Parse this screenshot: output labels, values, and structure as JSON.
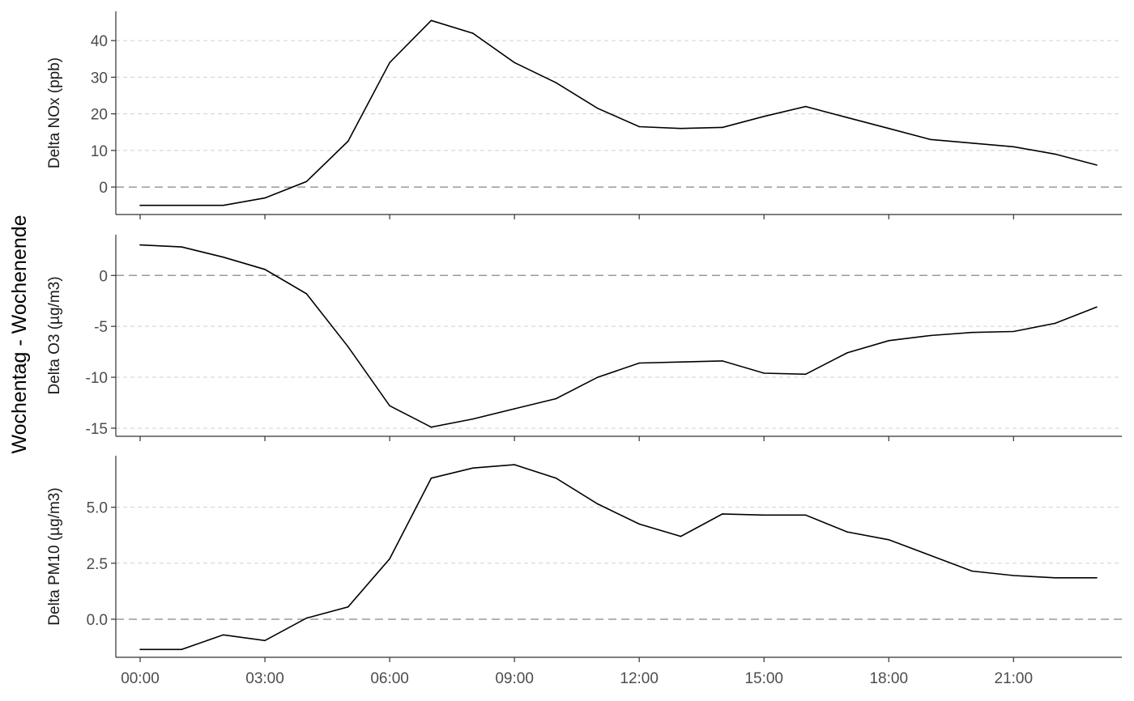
{
  "chart_data": {
    "type": "line",
    "ylabel": "Wochentag - Wochenende",
    "x": [
      "00:00",
      "01:00",
      "02:00",
      "03:00",
      "04:00",
      "05:00",
      "06:00",
      "07:00",
      "08:00",
      "09:00",
      "10:00",
      "11:00",
      "12:00",
      "13:00",
      "14:00",
      "15:00",
      "16:00",
      "17:00",
      "18:00",
      "19:00",
      "20:00",
      "21:00",
      "22:00",
      "23:00"
    ],
    "x_ticks": [
      "00:00",
      "03:00",
      "06:00",
      "09:00",
      "12:00",
      "15:00",
      "18:00",
      "21:00"
    ],
    "grid": "horizontal dashed",
    "reference_line": 0,
    "panels": [
      {
        "ylabel": "Delta NOx (ppb)",
        "ylim": [
          -7.5,
          48
        ],
        "yticks": [
          "0",
          "10",
          "20",
          "30",
          "40"
        ],
        "ytick_values": [
          0,
          10,
          20,
          30,
          40
        ],
        "values": [
          -5,
          -5,
          -5,
          -3,
          1.5,
          12.5,
          34,
          45.5,
          42,
          34,
          28.5,
          21.5,
          16.5,
          16,
          16.3,
          19.3,
          22,
          19,
          16,
          13,
          12,
          11,
          9,
          6
        ]
      },
      {
        "ylabel": "Delta O3 (µg/m3)",
        "ylim": [
          -15.8,
          4.0
        ],
        "yticks": [
          "0",
          "-5",
          "-10",
          "-15"
        ],
        "ytick_values": [
          0,
          -5,
          -10,
          -15
        ],
        "values": [
          3.0,
          2.8,
          1.8,
          0.6,
          -1.8,
          -7.0,
          -12.8,
          -14.9,
          -14.1,
          -13.1,
          -12.1,
          -10.0,
          -8.6,
          -8.5,
          -8.4,
          -9.6,
          -9.7,
          -7.6,
          -6.4,
          -5.9,
          -5.6,
          -5.5,
          -4.7,
          -3.1
        ]
      },
      {
        "ylabel": "Delta PM10 (µg/m3)",
        "ylim": [
          -1.7,
          7.3
        ],
        "yticks": [
          "0.0",
          "2.5",
          "5.0"
        ],
        "ytick_values": [
          0,
          2.5,
          5.0
        ],
        "values": [
          -1.35,
          -1.35,
          -0.7,
          -0.95,
          0.05,
          0.55,
          2.7,
          6.3,
          6.75,
          6.9,
          6.3,
          5.15,
          4.25,
          3.7,
          4.7,
          4.65,
          4.65,
          3.9,
          3.55,
          2.85,
          2.15,
          1.95,
          1.85,
          1.85
        ]
      }
    ]
  }
}
